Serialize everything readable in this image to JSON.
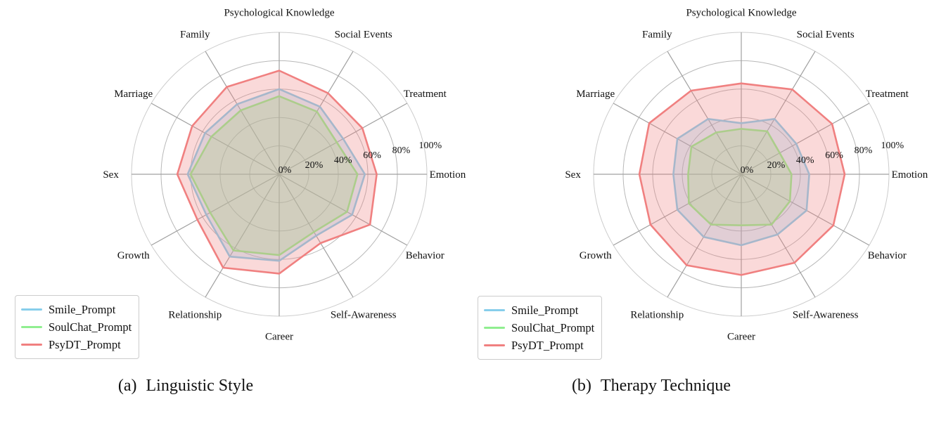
{
  "chart_data": [
    {
      "type": "radar",
      "title": "(a) Linguistic Style",
      "caption_prefix": "(a)",
      "caption_title": "Linguistic Style",
      "categories": [
        "Psychological Knowledge",
        "Social Events",
        "Treatment",
        "Emotion",
        "Behavior",
        "Self-Awareness",
        "Career",
        "Relationship",
        "Growth",
        "Sex",
        "Marriage",
        "Family"
      ],
      "direction": "clockwise",
      "start_angle_deg": 0,
      "grid": true,
      "legend_position": "lower left",
      "r_axis": {
        "max": 100,
        "ticks": [
          0,
          20,
          40,
          60,
          80,
          100
        ],
        "tick_labels": [
          "0%",
          "20%",
          "40%",
          "60%",
          "80%",
          "100%"
        ],
        "label_angle_deg": 80
      },
      "series": [
        {
          "name": "Smile_Prompt",
          "color": "#87CEEB",
          "fill_opacity": 0.3,
          "values": [
            60,
            55,
            50,
            58,
            57,
            50,
            61,
            67,
            57,
            62,
            58,
            57
          ]
        },
        {
          "name": "SoulChat_Prompt",
          "color": "#90EE90",
          "fill_opacity": 0.3,
          "values": [
            55,
            51,
            45,
            53,
            53,
            47,
            57,
            62,
            54,
            60,
            53,
            52
          ]
        },
        {
          "name": "PsyDT_Prompt",
          "color": "#F08080",
          "fill_opacity": 0.3,
          "values": [
            73,
            66,
            65,
            66,
            71,
            56,
            70,
            76,
            64,
            69,
            68,
            71
          ]
        }
      ]
    },
    {
      "type": "radar",
      "title": "(b) Therapy Technique",
      "caption_prefix": "(b)",
      "caption_title": "Therapy Technique",
      "categories": [
        "Psychological Knowledge",
        "Social Events",
        "Treatment",
        "Emotion",
        "Behavior",
        "Self-Awareness",
        "Career",
        "Relationship",
        "Growth",
        "Sex",
        "Marriage",
        "Family"
      ],
      "direction": "clockwise",
      "start_angle_deg": 0,
      "grid": true,
      "legend_position": "lower left",
      "r_axis": {
        "max": 100,
        "ticks": [
          0,
          20,
          40,
          60,
          80,
          100
        ],
        "tick_labels": [
          "0%",
          "20%",
          "40%",
          "60%",
          "80%",
          "100%"
        ],
        "label_angle_deg": 80
      },
      "series": [
        {
          "name": "Smile_Prompt",
          "color": "#87CEEB",
          "fill_opacity": 0.3,
          "values": [
            36,
            45,
            43,
            46,
            51,
            49,
            50,
            51,
            50,
            46,
            50,
            45
          ]
        },
        {
          "name": "SoulChat_Prompt",
          "color": "#90EE90",
          "fill_opacity": 0.3,
          "values": [
            32,
            35,
            30,
            34,
            38,
            41,
            36,
            41,
            41,
            36,
            39,
            34
          ]
        },
        {
          "name": "PsyDT_Prompt",
          "color": "#F08080",
          "fill_opacity": 0.3,
          "values": [
            64,
            69,
            71,
            70,
            72,
            72,
            71,
            74,
            71,
            69,
            72,
            68
          ]
        }
      ]
    }
  ],
  "style": {
    "spoke_color": "#a0a0a0",
    "ring_color": "#b8b8b8",
    "outer_ring_color": "#cccccc",
    "text_color": "#111111"
  }
}
